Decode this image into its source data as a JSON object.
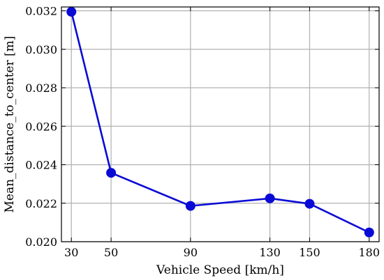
{
  "chart_data": {
    "type": "line",
    "title": "",
    "xlabel": "Vehicle Speed [km/h]",
    "ylabel": "Mean_distance_to_center [m]",
    "x": [
      30,
      50,
      90,
      130,
      150,
      180
    ],
    "xtick_labels": [
      "30",
      "50",
      "90",
      "130",
      "150",
      "180"
    ],
    "xlim": [
      25,
      185
    ],
    "ylim": [
      0.02,
      0.0322
    ],
    "yticks": [
      0.02,
      0.022,
      0.024,
      0.026,
      0.028,
      0.03,
      0.032
    ],
    "ytick_labels": [
      "0.020",
      "0.022",
      "0.024",
      "0.026",
      "0.028",
      "0.030",
      "0.032"
    ],
    "grid": true,
    "series": [
      {
        "values": [
          0.03195,
          0.02358,
          0.02186,
          0.02225,
          0.02197,
          0.02048
        ],
        "color": "#0a0ad6",
        "marker": "circle"
      }
    ]
  }
}
